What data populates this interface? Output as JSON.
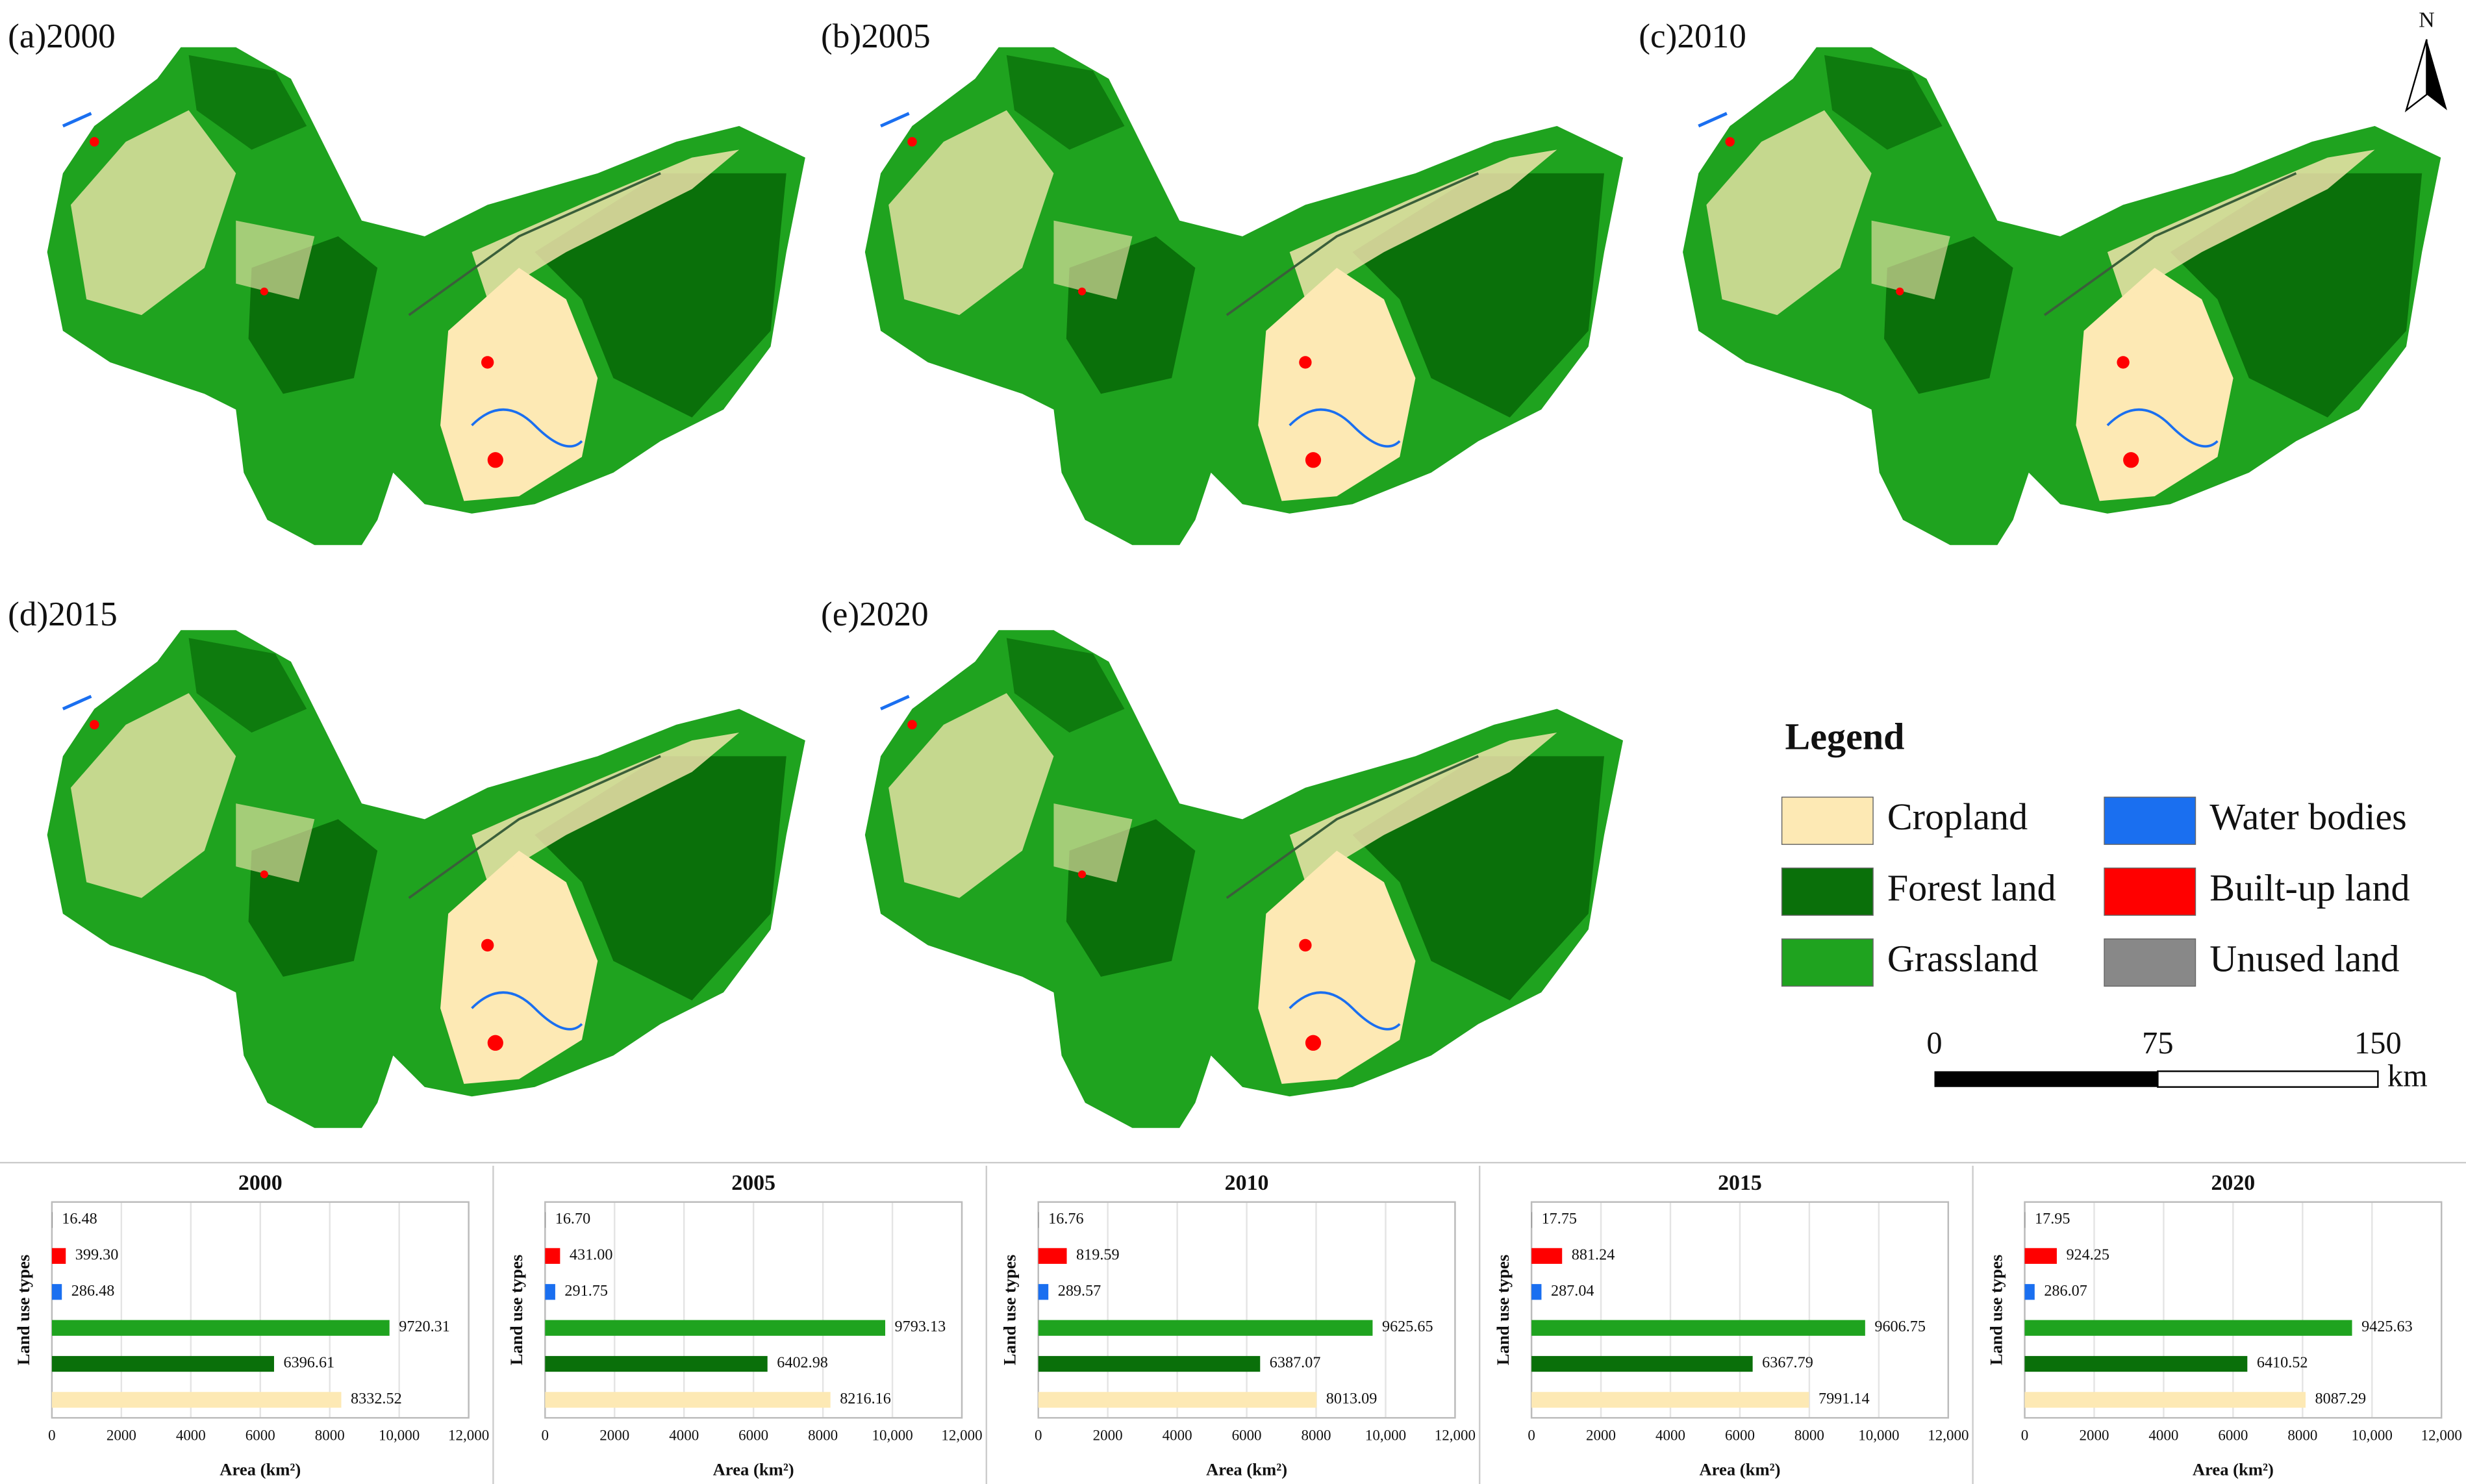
{
  "maps": [
    {
      "label": "(a)2000"
    },
    {
      "label": "(b)2005"
    },
    {
      "label": "(c)2010"
    },
    {
      "label": "(d)2015"
    },
    {
      "label": "(e)2020"
    }
  ],
  "north": "N",
  "legend": {
    "title": "Legend",
    "items": [
      {
        "name": "Cropland",
        "color": "#fde9b4"
      },
      {
        "name": "Forest land",
        "color": "#0a700a"
      },
      {
        "name": "Grassland",
        "color": "#1fa31f"
      },
      {
        "name": "Water bodies",
        "color": "#1a6ff0"
      },
      {
        "name": "Built-up land",
        "color": "#ff0000"
      },
      {
        "name": "Unused land",
        "color": "#888888"
      }
    ]
  },
  "scale_bar": {
    "labels": [
      "0",
      "75",
      "150"
    ],
    "unit": "km"
  },
  "chart_data": [
    {
      "type": "bar",
      "orientation": "horizontal",
      "title": "2000",
      "ylabel": "Land use types",
      "xlabel": "Area (km²)",
      "categories": [
        null,
        null,
        null,
        null,
        null,
        null
      ],
      "values": [
        8332.52,
        6396.61,
        9720.31,
        286.48,
        399.3,
        16.48
      ],
      "value_labels": [
        "8332.52",
        "6396.61",
        "9720.31",
        "286.48",
        "399.30",
        "16.48"
      ],
      "colors": [
        "#fde9b4",
        "#0a700a",
        "#1fa31f",
        "#1a6ff0",
        "#ff0000",
        "#888888"
      ],
      "xlim": [
        0,
        12000
      ],
      "xticks": [
        0,
        2000,
        4000,
        6000,
        8000,
        {
          "value": 10000,
          "label": "10,000"
        },
        {
          "value": 12000,
          "label": "12,000"
        }
      ],
      "grid": true
    },
    {
      "type": "bar",
      "orientation": "horizontal",
      "title": "2005",
      "ylabel": "Land use types",
      "xlabel": "Area (km²)",
      "categories": [
        null,
        null,
        null,
        null,
        null,
        null
      ],
      "values": [
        8216.16,
        6402.98,
        9793.13,
        291.75,
        431,
        16.7
      ],
      "value_labels": [
        "8216.16",
        "6402.98",
        "9793.13",
        "291.75",
        "431.00",
        "16.70"
      ],
      "colors": [
        "#fde9b4",
        "#0a700a",
        "#1fa31f",
        "#1a6ff0",
        "#ff0000",
        "#888888"
      ],
      "xlim": [
        0,
        12000
      ],
      "xticks": [
        0,
        2000,
        4000,
        6000,
        8000,
        {
          "value": 10000,
          "label": "10,000"
        },
        {
          "value": 12000,
          "label": "12,000"
        }
      ],
      "grid": true
    },
    {
      "type": "bar",
      "orientation": "horizontal",
      "title": "2010",
      "ylabel": "Land use types",
      "xlabel": "Area (km²)",
      "categories": [
        null,
        null,
        null,
        null,
        null,
        null
      ],
      "values": [
        8013.09,
        6387.07,
        9625.65,
        289.57,
        819.59,
        16.76
      ],
      "value_labels": [
        "8013.09",
        "6387.07",
        "9625.65",
        "289.57",
        "819.59",
        "16.76"
      ],
      "colors": [
        "#fde9b4",
        "#0a700a",
        "#1fa31f",
        "#1a6ff0",
        "#ff0000",
        "#888888"
      ],
      "xlim": [
        0,
        12000
      ],
      "xticks": [
        0,
        2000,
        4000,
        6000,
        8000,
        {
          "value": 10000,
          "label": "10,000"
        },
        {
          "value": 12000,
          "label": "12,000"
        }
      ],
      "grid": true
    },
    {
      "type": "bar",
      "orientation": "horizontal",
      "title": "2015",
      "ylabel": "Land use types",
      "xlabel": "Area (km²)",
      "categories": [
        null,
        null,
        null,
        null,
        null,
        null
      ],
      "values": [
        7991.14,
        6367.79,
        9606.75,
        287.04,
        881.24,
        17.75
      ],
      "value_labels": [
        "7991.14",
        "6367.79",
        "9606.75",
        "287.04",
        "881.24",
        "17.75"
      ],
      "colors": [
        "#fde9b4",
        "#0a700a",
        "#1fa31f",
        "#1a6ff0",
        "#ff0000",
        "#888888"
      ],
      "xlim": [
        0,
        12000
      ],
      "xticks": [
        0,
        2000,
        4000,
        6000,
        8000,
        {
          "value": 10000,
          "label": "10,000"
        },
        {
          "value": 12000,
          "label": "12,000"
        }
      ],
      "grid": true
    },
    {
      "type": "bar",
      "orientation": "horizontal",
      "title": "2020",
      "ylabel": "Land use types",
      "xlabel": "Area (km²)",
      "categories": [
        null,
        null,
        null,
        null,
        null,
        null
      ],
      "values": [
        8087.29,
        6410.52,
        9425.63,
        286.07,
        924.25,
        17.95
      ],
      "value_labels": [
        "8087.29",
        "6410.52",
        "9425.63",
        "286.07",
        "924.25",
        "17.95"
      ],
      "colors": [
        "#fde9b4",
        "#0a700a",
        "#1fa31f",
        "#1a6ff0",
        "#ff0000",
        "#888888"
      ],
      "xlim": [
        0,
        12000
      ],
      "xticks": [
        0,
        2000,
        4000,
        6000,
        8000,
        {
          "value": 10000,
          "label": "10,000"
        },
        {
          "value": 12000,
          "label": "12,000"
        }
      ],
      "grid": true
    }
  ]
}
